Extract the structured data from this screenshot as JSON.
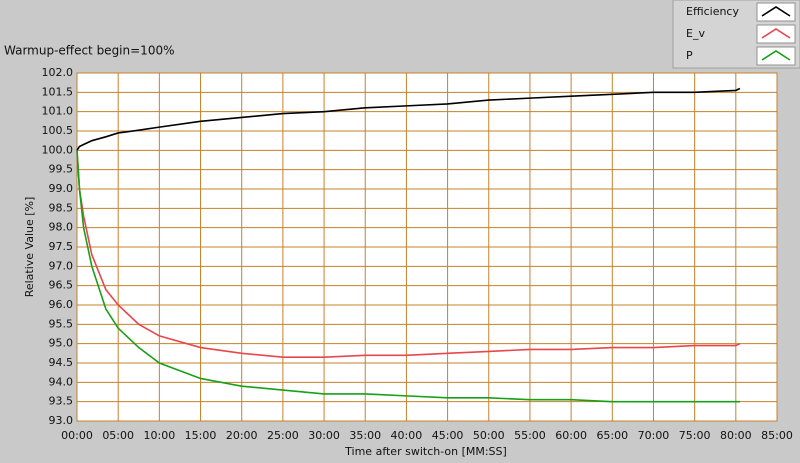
{
  "chart_data": {
    "type": "line",
    "title": "Warmup-effect begin=100%",
    "x_label": "Time after switch-on [MM:SS]",
    "y_label": "Relative Value [%]",
    "x": [
      0,
      0.3,
      0.8,
      1.8,
      3.5,
      5,
      7.5,
      10,
      15,
      20,
      25,
      30,
      35,
      40,
      45,
      50,
      55,
      60,
      65,
      70,
      75,
      80,
      80.5
    ],
    "series": [
      {
        "name": "Efficiency",
        "color": "#000000",
        "values": [
          100.0,
          100.1,
          100.15,
          100.25,
          100.35,
          100.45,
          100.52,
          100.6,
          100.75,
          100.85,
          100.95,
          101.0,
          101.1,
          101.15,
          101.2,
          101.3,
          101.35,
          101.4,
          101.45,
          101.5,
          101.5,
          101.55,
          101.6
        ]
      },
      {
        "name": "E_v",
        "color": "#e8474b",
        "values": [
          100.0,
          99.0,
          98.3,
          97.3,
          96.4,
          96.0,
          95.5,
          95.2,
          94.9,
          94.75,
          94.65,
          94.65,
          94.7,
          94.7,
          94.75,
          94.8,
          94.85,
          94.85,
          94.9,
          94.9,
          94.95,
          94.95,
          95.0
        ]
      },
      {
        "name": "P",
        "color": "#18a018",
        "values": [
          100.0,
          99.0,
          98.0,
          97.0,
          95.9,
          95.4,
          94.9,
          94.5,
          94.1,
          93.9,
          93.8,
          93.7,
          93.7,
          93.65,
          93.6,
          93.6,
          93.55,
          93.55,
          93.5,
          93.5,
          93.5,
          93.5,
          93.5
        ]
      }
    ],
    "xlim": [
      0,
      85
    ],
    "xticks": [
      {
        "value": 0,
        "label": "00:00"
      },
      {
        "value": 5,
        "label": "05:00"
      },
      {
        "value": 10,
        "label": "10:00"
      },
      {
        "value": 15,
        "label": "15:00"
      },
      {
        "value": 20,
        "label": "20:00"
      },
      {
        "value": 25,
        "label": "25:00"
      },
      {
        "value": 30,
        "label": "30:00"
      },
      {
        "value": 35,
        "label": "35:00"
      },
      {
        "value": 40,
        "label": "40:00"
      },
      {
        "value": 45,
        "label": "45:00"
      },
      {
        "value": 50,
        "label": "50:00"
      },
      {
        "value": 55,
        "label": "55:00"
      },
      {
        "value": 60,
        "label": "60:00"
      },
      {
        "value": 65,
        "label": "65:00"
      },
      {
        "value": 70,
        "label": "70:00"
      },
      {
        "value": 75,
        "label": "75:00"
      },
      {
        "value": 80,
        "label": "80:00"
      },
      {
        "value": 85,
        "label": "85:00"
      }
    ],
    "ylim": [
      93,
      102
    ],
    "yticks": [
      {
        "value": 93,
        "label": "93.0"
      },
      93.5,
      {
        "value": 94,
        "label": "94.0"
      },
      94.5,
      {
        "value": 95,
        "label": "95.0"
      },
      95.5,
      {
        "value": 96,
        "label": "96.0"
      },
      96.5,
      {
        "value": 97,
        "label": "97.0"
      },
      97.5,
      {
        "value": 98,
        "label": "98.0"
      },
      98.5,
      {
        "value": 99,
        "label": "99.0"
      },
      99.5,
      {
        "value": 100,
        "label": "100.0"
      },
      100.5,
      {
        "value": 101,
        "label": "101.0"
      },
      101.5,
      {
        "value": 102,
        "label": "102.0"
      }
    ],
    "grid": true,
    "grid_color": "#c8802c",
    "legend": "top-right"
  }
}
